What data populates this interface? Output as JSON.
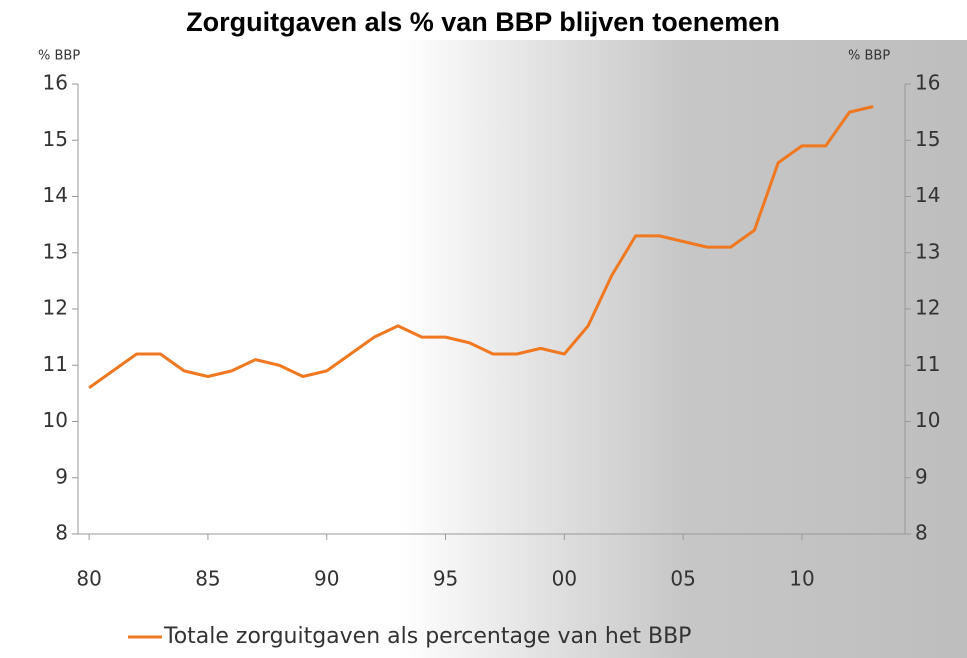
{
  "chart_data": {
    "type": "line",
    "title": "Zorguitgaven als % van BBP blijven toenemen",
    "y_label": "% BBP",
    "y2_label": "% BBP",
    "x": [
      1980,
      1981,
      1982,
      1983,
      1984,
      1985,
      1986,
      1987,
      1988,
      1989,
      1990,
      1991,
      1992,
      1993,
      1994,
      1995,
      1996,
      1997,
      1998,
      1999,
      2000,
      2001,
      2002,
      2003,
      2004,
      2005,
      2006,
      2007,
      2008,
      2009,
      2010,
      2011,
      2012,
      2013
    ],
    "series": [
      {
        "name": "Totale zorguitgaven als percentage van het BBP",
        "color": "#f07820",
        "values": [
          10.6,
          10.9,
          11.2,
          11.2,
          10.9,
          10.8,
          10.9,
          11.1,
          11.0,
          10.8,
          10.9,
          11.2,
          11.5,
          11.7,
          11.5,
          11.5,
          11.4,
          11.2,
          11.2,
          11.3,
          11.2,
          11.7,
          12.6,
          13.3,
          13.3,
          13.2,
          13.1,
          13.1,
          13.4,
          14.6,
          14.9,
          14.9,
          15.5,
          15.6
        ]
      }
    ],
    "xlim": [
      1979.7,
      2014
    ],
    "xticks": [
      {
        "value": 1980,
        "label": "80"
      },
      {
        "value": 1985,
        "label": "85"
      },
      {
        "value": 1990,
        "label": "90"
      },
      {
        "value": 1995,
        "label": "95"
      },
      {
        "value": 2000,
        "label": "00"
      },
      {
        "value": 2005,
        "label": "05"
      },
      {
        "value": 2010,
        "label": "10"
      }
    ],
    "ylim": [
      8,
      16
    ],
    "yticks": [
      8,
      9,
      10,
      11,
      12,
      13,
      14,
      15,
      16
    ],
    "y2lim": [
      8,
      16
    ],
    "y2ticks": [
      8,
      9,
      10,
      11,
      12,
      13,
      14,
      15,
      16
    ],
    "legend": "bottom"
  }
}
